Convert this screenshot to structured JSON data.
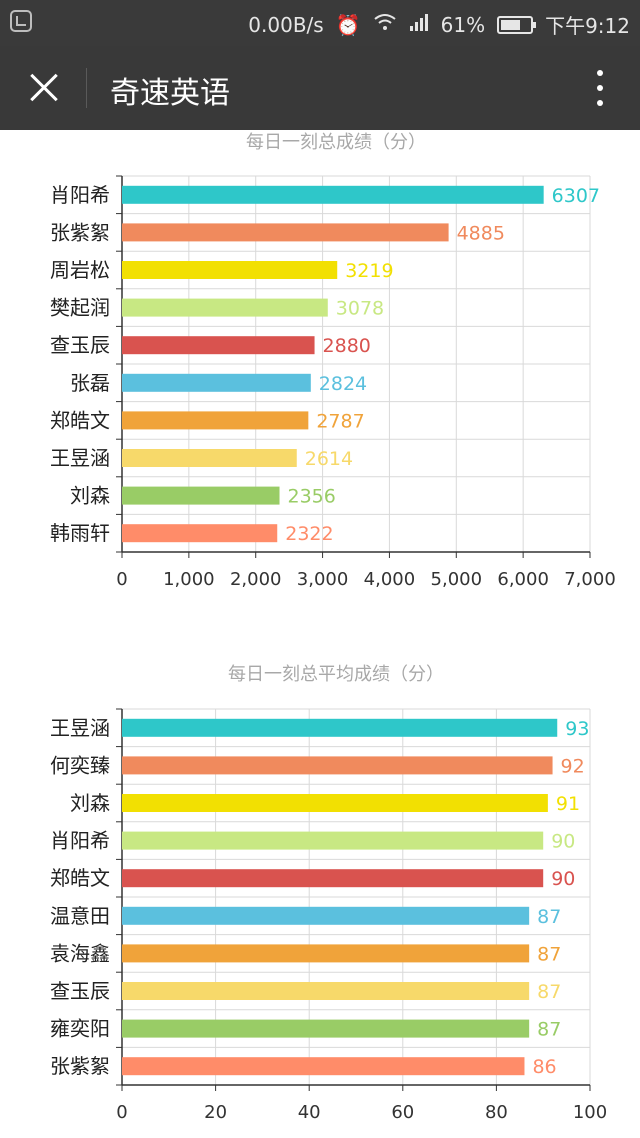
{
  "status_bar": {
    "network_speed": "0.00B/s",
    "battery_percent": "61%",
    "time": "下午9:12"
  },
  "titlebar": {
    "title": "奇速英语"
  },
  "chart_data": [
    {
      "type": "bar",
      "orientation": "horizontal",
      "title": "每日一刻总成绩（分）",
      "categories": [
        "肖阳希",
        "张紫絮",
        "周岩松",
        "樊起润",
        "查玉辰",
        "张磊",
        "郑皓文",
        "王昱涵",
        "刘森",
        "韩雨轩"
      ],
      "values": [
        6307,
        4885,
        3219,
        3078,
        2880,
        2824,
        2787,
        2614,
        2356,
        2322
      ],
      "colors": [
        "#2ec7c9",
        "#f08a5d",
        "#f2e002",
        "#c8e883",
        "#d9534f",
        "#5bc0de",
        "#f0a33a",
        "#f7d96a",
        "#99cc66",
        "#ff8c69"
      ],
      "xlim": [
        0,
        7000
      ],
      "xticks": [
        0,
        1000,
        2000,
        3000,
        4000,
        5000,
        6000,
        7000
      ],
      "xtick_labels": [
        "0",
        "1,000",
        "2,000",
        "3,000",
        "4,000",
        "5,000",
        "6,000",
        "7,000"
      ],
      "grid": true
    },
    {
      "type": "bar",
      "orientation": "horizontal",
      "title": "每日一刻总平均成绩（分）",
      "categories": [
        "王昱涵",
        "何奕臻",
        "刘森",
        "肖阳希",
        "郑皓文",
        "温意田",
        "袁海鑫",
        "查玉辰",
        "雍奕阳",
        "张紫絮"
      ],
      "values": [
        93,
        92,
        91,
        90,
        90,
        87,
        87,
        87,
        87,
        86
      ],
      "colors": [
        "#2ec7c9",
        "#f08a5d",
        "#f2e002",
        "#c8e883",
        "#d9534f",
        "#5bc0de",
        "#f0a33a",
        "#f7d96a",
        "#99cc66",
        "#ff8c69"
      ],
      "xlim": [
        0,
        100
      ],
      "xticks": [
        0,
        20,
        40,
        60,
        80,
        100
      ],
      "xtick_labels": [
        "0",
        "20",
        "40",
        "60",
        "80",
        "100"
      ],
      "grid": true
    }
  ]
}
